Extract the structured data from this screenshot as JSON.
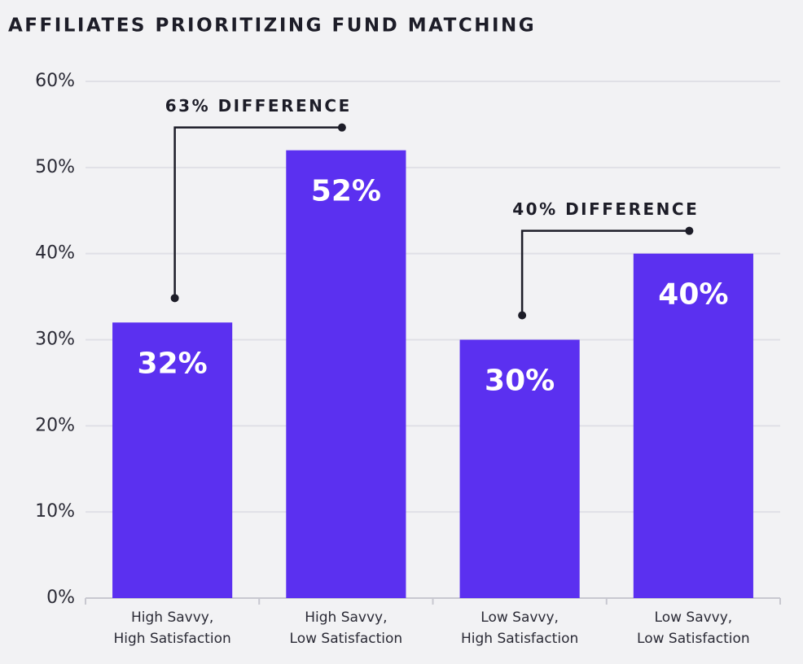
{
  "chart_data": {
    "type": "bar",
    "title": "AFFILIATES PRIORITIZING FUND MATCHING",
    "categories": [
      [
        "High Savvy,",
        "High Satisfaction"
      ],
      [
        "High Savvy,",
        "Low Satisfaction"
      ],
      [
        "Low Savvy,",
        "High Satisfaction"
      ],
      [
        "Low Savvy,",
        "Low Satisfaction"
      ]
    ],
    "values": [
      32,
      52,
      30,
      40
    ],
    "value_labels": [
      "32%",
      "52%",
      "30%",
      "40%"
    ],
    "color": "#5b30f0",
    "ylim": [
      0,
      60
    ],
    "yticks": [
      {
        "value": 0,
        "label": "0%"
      },
      {
        "value": 10,
        "label": "10%"
      },
      {
        "value": 20,
        "label": "20%"
      },
      {
        "value": 30,
        "label": "30%"
      },
      {
        "value": 40,
        "label": "40%"
      },
      {
        "value": 50,
        "label": "50%"
      },
      {
        "value": 60,
        "label": "60%"
      }
    ],
    "grid": true,
    "annotations": [
      "63% DIFFERENCE",
      "40% DIFFERENCE"
    ]
  }
}
